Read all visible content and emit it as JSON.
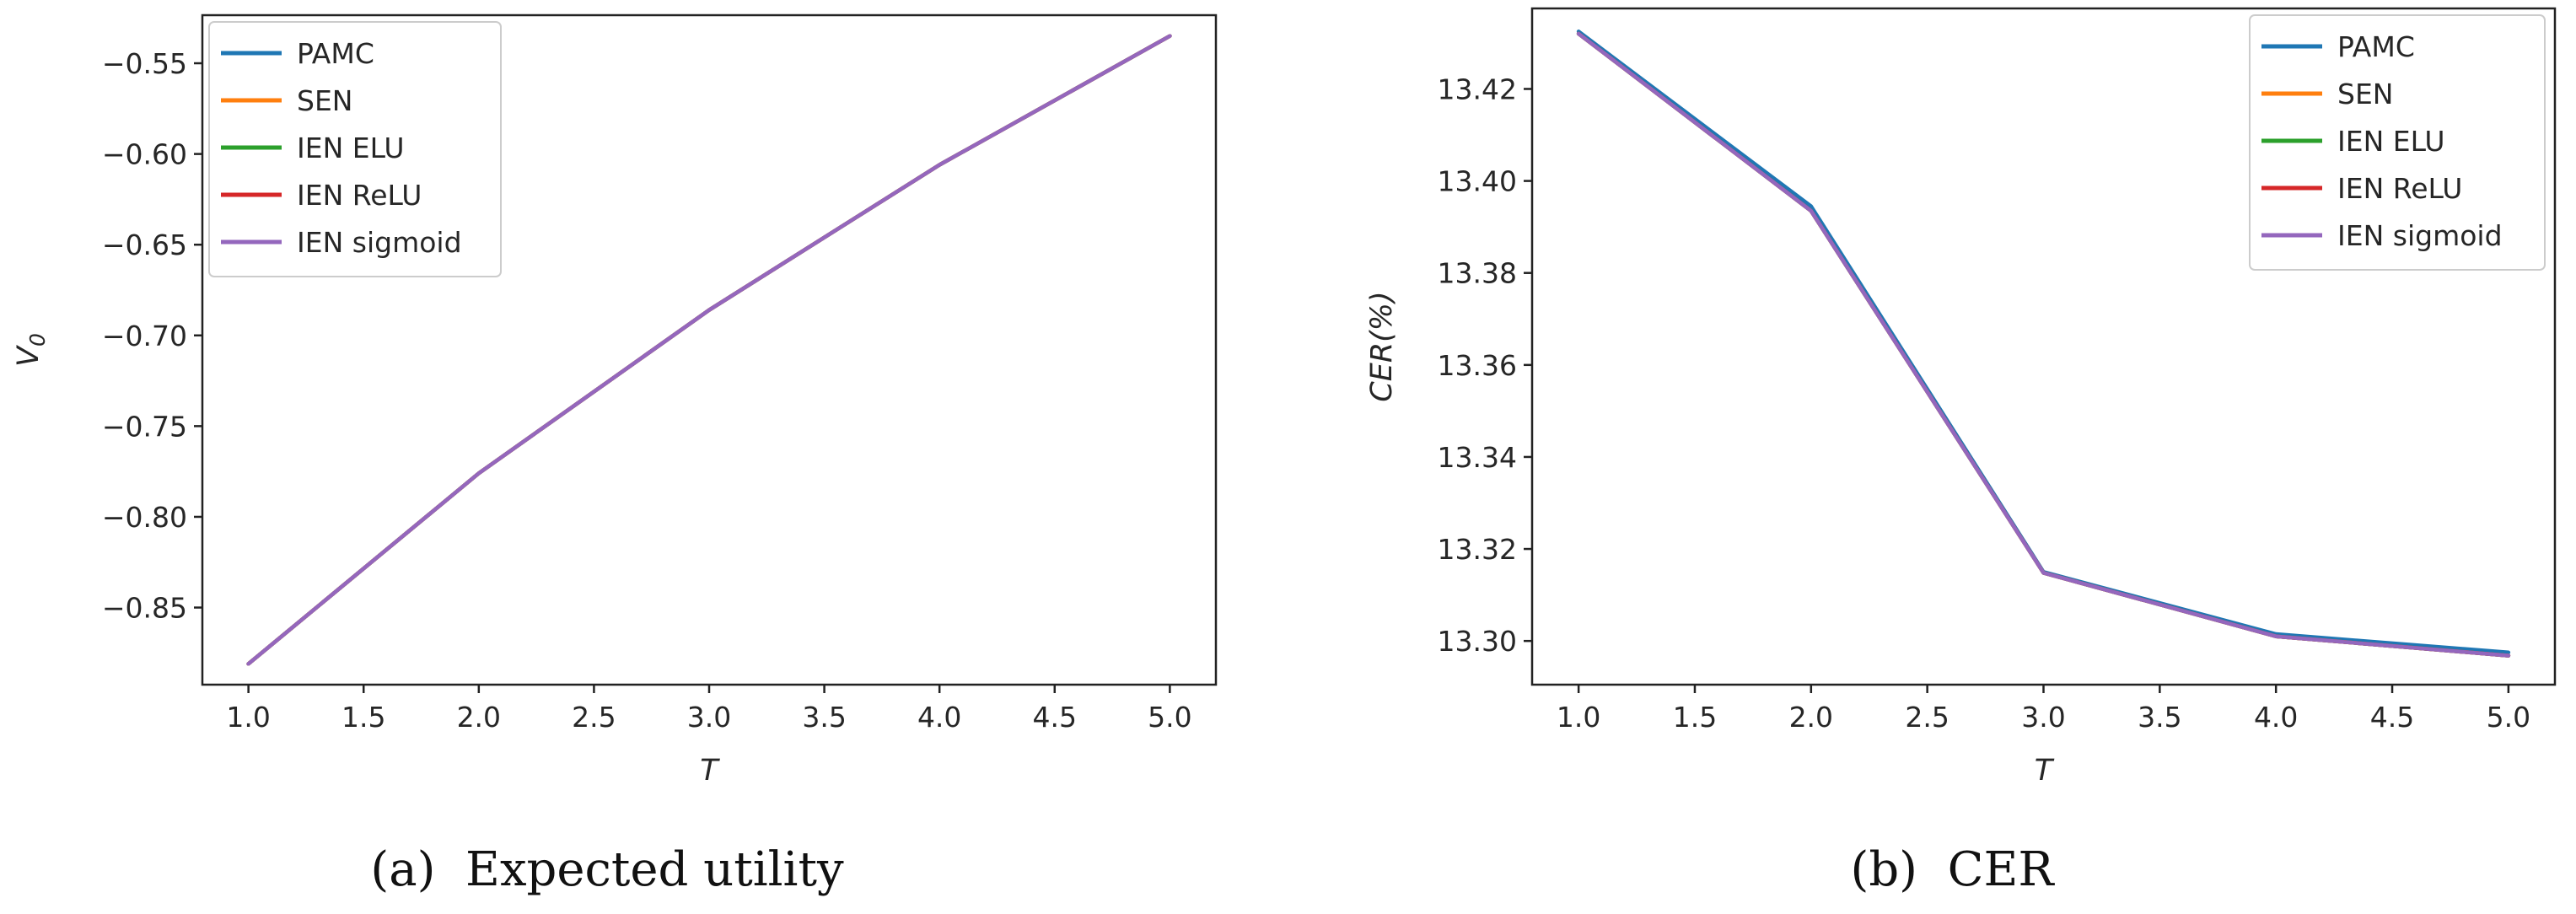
{
  "chart_data": [
    {
      "type": "line",
      "caption": "(a)  Expected utility",
      "xlabel": "T",
      "ylabel": "V0",
      "xlim": [
        0.8,
        5.2
      ],
      "ylim": [
        -0.8925,
        -0.5235
      ],
      "xticks": [
        1.0,
        1.5,
        2.0,
        2.5,
        3.0,
        3.5,
        4.0,
        4.5,
        5.0
      ],
      "xtick_labels": [
        "1.0",
        "1.5",
        "2.0",
        "2.5",
        "3.0",
        "3.5",
        "4.0",
        "4.5",
        "5.0"
      ],
      "yticks": [
        -0.85,
        -0.8,
        -0.75,
        -0.7,
        -0.65,
        -0.6,
        -0.55
      ],
      "ytick_labels": [
        "−0.85",
        "−0.80",
        "−0.75",
        "−0.70",
        "−0.65",
        "−0.60",
        "−0.55"
      ],
      "legend_position": "top-left",
      "grid": false,
      "x": [
        1,
        2,
        3,
        4,
        5
      ],
      "series": [
        {
          "name": "PAMC",
          "color": "#1f77b4",
          "values": [
            -0.881,
            -0.776,
            -0.686,
            -0.606,
            -0.535
          ]
        },
        {
          "name": "SEN",
          "color": "#ff7f0e",
          "values": [
            -0.881,
            -0.776,
            -0.686,
            -0.606,
            -0.535
          ]
        },
        {
          "name": "IEN ELU",
          "color": "#2ca02c",
          "values": [
            -0.881,
            -0.776,
            -0.686,
            -0.606,
            -0.535
          ]
        },
        {
          "name": "IEN ReLU",
          "color": "#d62728",
          "values": [
            -0.881,
            -0.776,
            -0.686,
            -0.606,
            -0.535
          ]
        },
        {
          "name": "IEN sigmoid",
          "color": "#9467bd",
          "values": [
            -0.881,
            -0.776,
            -0.686,
            -0.606,
            -0.535
          ]
        }
      ]
    },
    {
      "type": "line",
      "caption": "(b)  CER",
      "xlabel": "T",
      "ylabel": "CER(%)",
      "xlim": [
        0.8,
        5.2
      ],
      "ylim": [
        13.2905,
        13.4375
      ],
      "xticks": [
        1.0,
        1.5,
        2.0,
        2.5,
        3.0,
        3.5,
        4.0,
        4.5,
        5.0
      ],
      "xtick_labels": [
        "1.0",
        "1.5",
        "2.0",
        "2.5",
        "3.0",
        "3.5",
        "4.0",
        "4.5",
        "5.0"
      ],
      "yticks": [
        13.3,
        13.32,
        13.34,
        13.36,
        13.38,
        13.4,
        13.42
      ],
      "ytick_labels": [
        "13.30",
        "13.32",
        "13.34",
        "13.36",
        "13.38",
        "13.40",
        "13.42"
      ],
      "legend_position": "top-right",
      "grid": false,
      "x": [
        1,
        2,
        3,
        4,
        5
      ],
      "series": [
        {
          "name": "PAMC",
          "color": "#1f77b4",
          "values": [
            13.4325,
            13.3945,
            13.315,
            13.3015,
            13.2975
          ]
        },
        {
          "name": "SEN",
          "color": "#ff7f0e",
          "values": [
            13.432,
            13.3935,
            13.3148,
            13.301,
            13.2968
          ]
        },
        {
          "name": "IEN ELU",
          "color": "#2ca02c",
          "values": [
            13.432,
            13.3935,
            13.3148,
            13.301,
            13.2968
          ]
        },
        {
          "name": "IEN ReLU",
          "color": "#d62728",
          "values": [
            13.432,
            13.3935,
            13.3148,
            13.301,
            13.2968
          ]
        },
        {
          "name": "IEN sigmoid",
          "color": "#9467bd",
          "values": [
            13.432,
            13.3935,
            13.3148,
            13.301,
            13.2968
          ]
        }
      ]
    }
  ]
}
